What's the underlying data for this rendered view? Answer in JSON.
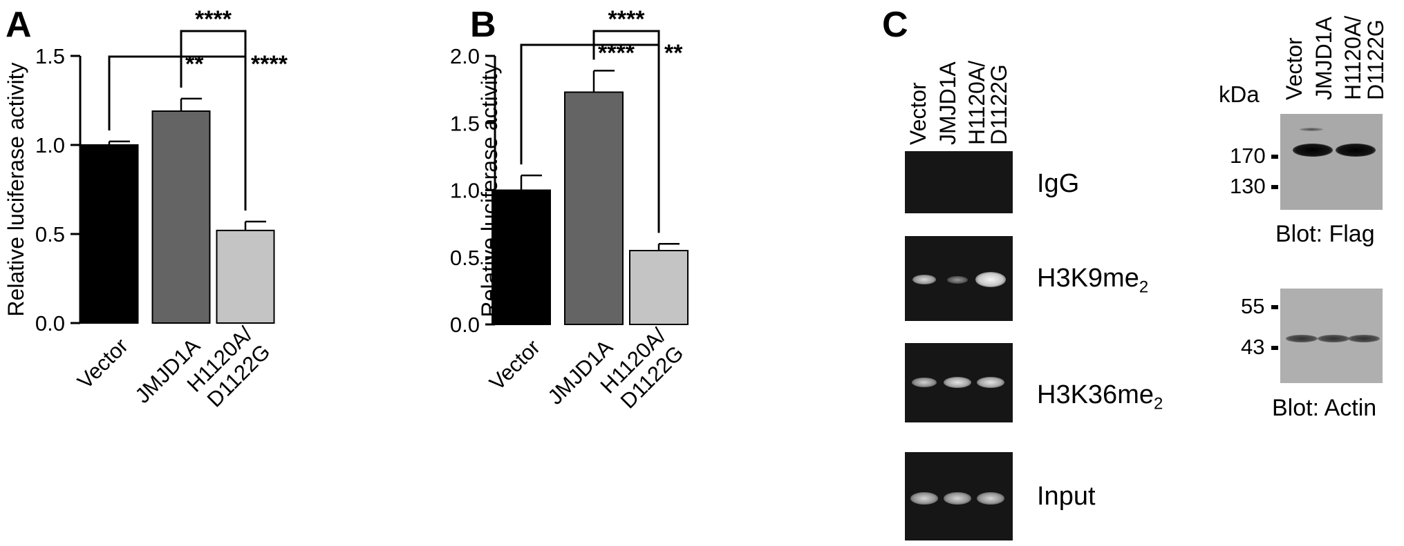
{
  "panels": {
    "A": {
      "letter": "A"
    },
    "B": {
      "letter": "B"
    },
    "C": {
      "letter": "C"
    }
  },
  "chart_data": [
    {
      "panel": "A",
      "type": "bar",
      "categories": [
        "Vector",
        "JMJD1A",
        "H1120A/\nD1122G"
      ],
      "values": [
        1.0,
        1.19,
        0.52
      ],
      "errors": [
        0.02,
        0.07,
        0.05
      ],
      "colors": [
        "#000000",
        "#646464",
        "#c4c4c4"
      ],
      "ylabel": "Relative luciferase activity",
      "ylim": [
        0,
        1.5
      ],
      "yticks": [
        0.0,
        0.5,
        1.0,
        1.5
      ],
      "ytick_labels": [
        "0.0",
        "0.5",
        "1.0",
        "1.5"
      ],
      "significance": [
        {
          "from": 1,
          "to": 2,
          "label": "****"
        },
        {
          "from": 0,
          "to": 1,
          "label": "**"
        },
        {
          "from": 0,
          "to": 2,
          "label": "****"
        }
      ]
    },
    {
      "panel": "B",
      "type": "bar",
      "categories": [
        "Vector",
        "JMJD1A",
        "H1120A/\nD1122G"
      ],
      "values": [
        1.0,
        1.73,
        0.55
      ],
      "errors": [
        0.11,
        0.16,
        0.05
      ],
      "colors": [
        "#000000",
        "#646464",
        "#c4c4c4"
      ],
      "ylabel": "Relative luciferase activity",
      "ylim": [
        0,
        2.0
      ],
      "yticks": [
        0.0,
        0.5,
        1.0,
        1.5,
        2.0
      ],
      "ytick_labels": [
        "0.0",
        "0.5",
        "1.0",
        "1.5",
        "2.0"
      ],
      "significance": [
        {
          "from": 1,
          "to": 2,
          "label": "****"
        },
        {
          "from": 0,
          "to": 1,
          "label": "****"
        },
        {
          "from": 0,
          "to": 2,
          "label": "**"
        }
      ]
    }
  ],
  "gels": {
    "lanes": [
      "Vector",
      "JMJD1A",
      "H1120A/",
      "D1122G"
    ],
    "rows": [
      {
        "label": "IgG",
        "sub": ""
      },
      {
        "label": "H3K9me",
        "sub": "2"
      },
      {
        "label": "H3K36me",
        "sub": "2"
      },
      {
        "label": "Input",
        "sub": ""
      }
    ]
  },
  "blots": {
    "lanes": [
      "Vector",
      "JMJD1A",
      "H1120A/",
      "D1122G"
    ],
    "unit": "kDa",
    "flag": {
      "markers": [
        "170",
        "130"
      ],
      "caption": "Blot: Flag"
    },
    "actin": {
      "markers": [
        "55",
        "43"
      ],
      "caption": "Blot: Actin"
    }
  }
}
